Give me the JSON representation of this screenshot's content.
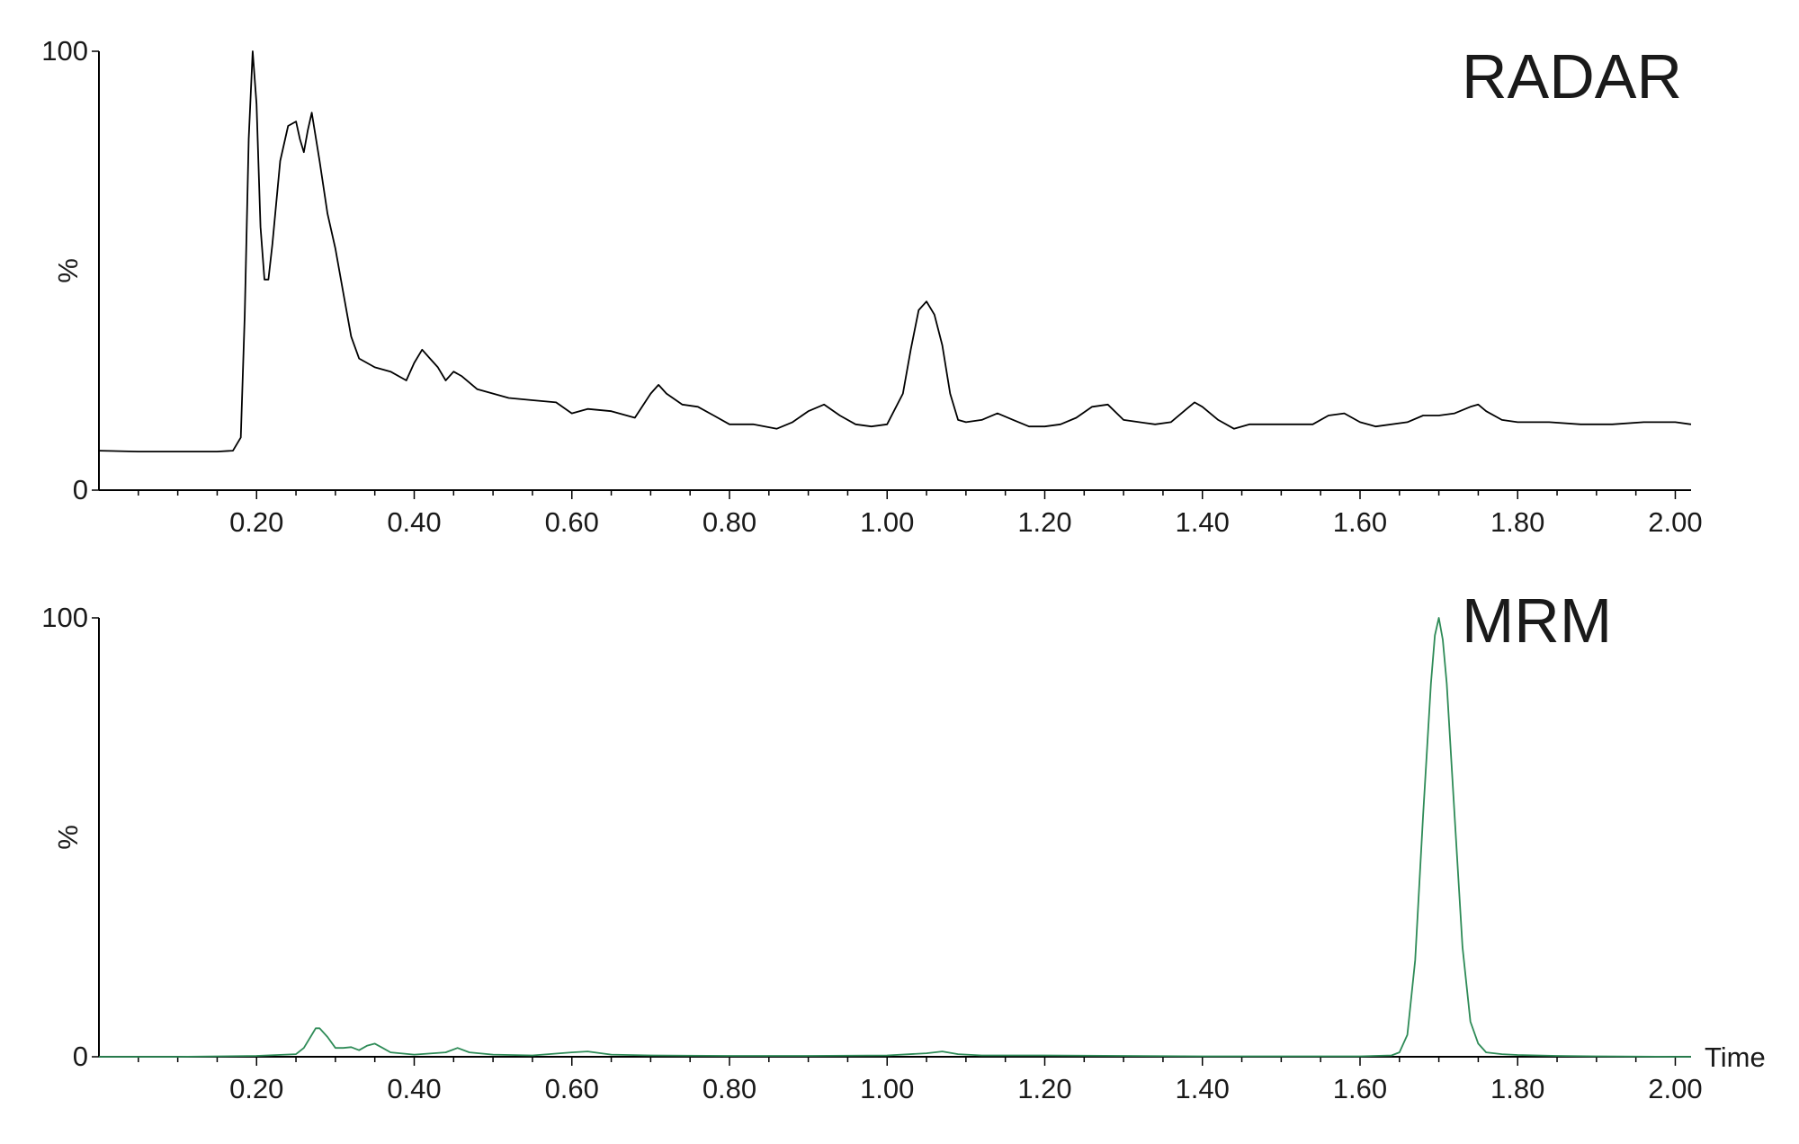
{
  "chart_data": [
    {
      "type": "line",
      "title": "RADAR",
      "ylabel": "%",
      "xlabel": "",
      "xlim": [
        0.0,
        2.02
      ],
      "ylim": [
        0,
        100
      ],
      "yticks": [
        0,
        100
      ],
      "xticks": [
        "0.20",
        "0.40",
        "0.60",
        "0.80",
        "1.00",
        "1.20",
        "1.40",
        "1.60",
        "1.80",
        "2.00"
      ],
      "grid": false,
      "line_color": "#000000",
      "series": [
        {
          "x": [
            0.0,
            0.05,
            0.1,
            0.15,
            0.17,
            0.18,
            0.185,
            0.19,
            0.195,
            0.2,
            0.205,
            0.21,
            0.215,
            0.22,
            0.23,
            0.24,
            0.25,
            0.255,
            0.26,
            0.265,
            0.27,
            0.28,
            0.29,
            0.3,
            0.31,
            0.32,
            0.33,
            0.35,
            0.37,
            0.39,
            0.4,
            0.41,
            0.42,
            0.43,
            0.44,
            0.45,
            0.46,
            0.48,
            0.5,
            0.52,
            0.55,
            0.58,
            0.6,
            0.62,
            0.65,
            0.68,
            0.7,
            0.71,
            0.72,
            0.74,
            0.76,
            0.78,
            0.8,
            0.83,
            0.86,
            0.88,
            0.9,
            0.92,
            0.94,
            0.96,
            0.98,
            1.0,
            1.02,
            1.03,
            1.04,
            1.05,
            1.06,
            1.07,
            1.08,
            1.09,
            1.1,
            1.12,
            1.14,
            1.16,
            1.18,
            1.2,
            1.22,
            1.24,
            1.26,
            1.28,
            1.3,
            1.32,
            1.34,
            1.36,
            1.38,
            1.39,
            1.4,
            1.42,
            1.44,
            1.46,
            1.5,
            1.54,
            1.56,
            1.58,
            1.6,
            1.62,
            1.66,
            1.68,
            1.7,
            1.72,
            1.74,
            1.75,
            1.76,
            1.78,
            1.8,
            1.84,
            1.88,
            1.92,
            1.96,
            2.0,
            2.02
          ],
          "y": [
            9,
            8.8,
            8.8,
            8.8,
            9,
            12,
            40,
            80,
            100,
            88,
            60,
            48,
            48,
            56,
            75,
            83,
            84,
            80,
            77,
            82,
            86,
            75,
            63,
            55,
            45,
            35,
            30,
            28,
            27,
            25,
            29,
            32,
            30,
            28,
            25,
            27,
            26,
            23,
            22,
            21,
            20.5,
            20,
            17.5,
            18.5,
            18,
            16.5,
            22,
            24,
            22,
            19.5,
            19,
            17,
            15,
            15,
            14,
            15.5,
            18,
            19.5,
            17,
            15,
            14.5,
            15,
            22,
            32,
            41,
            43,
            40,
            33,
            22,
            16,
            15.5,
            16,
            17.5,
            16,
            14.5,
            14.5,
            15,
            16.5,
            19,
            19.5,
            16,
            15.5,
            15,
            15.5,
            18.5,
            20,
            19,
            16,
            14,
            15,
            15,
            15,
            17,
            17.5,
            15.5,
            14.5,
            15.5,
            17,
            17,
            17.5,
            19,
            19.5,
            18,
            16,
            15.5,
            15.5,
            15,
            15,
            15.5,
            15.5,
            15
          ]
        }
      ]
    },
    {
      "type": "line",
      "title": "MRM",
      "ylabel": "%",
      "xlabel": "Time",
      "xlim": [
        0.0,
        2.02
      ],
      "ylim": [
        0,
        100
      ],
      "yticks": [
        0,
        100
      ],
      "xticks": [
        "0.20",
        "0.40",
        "0.60",
        "0.80",
        "1.00",
        "1.20",
        "1.40",
        "1.60",
        "1.80",
        "2.00"
      ],
      "grid": false,
      "line_color": "#2e8b57",
      "series": [
        {
          "x": [
            0.0,
            0.1,
            0.2,
            0.25,
            0.26,
            0.27,
            0.275,
            0.28,
            0.29,
            0.3,
            0.31,
            0.32,
            0.33,
            0.34,
            0.35,
            0.36,
            0.37,
            0.4,
            0.44,
            0.455,
            0.47,
            0.5,
            0.55,
            0.6,
            0.62,
            0.65,
            0.7,
            0.8,
            0.9,
            1.0,
            1.05,
            1.07,
            1.09,
            1.12,
            1.2,
            1.3,
            1.4,
            1.5,
            1.6,
            1.64,
            1.65,
            1.66,
            1.67,
            1.68,
            1.69,
            1.695,
            1.7,
            1.705,
            1.71,
            1.72,
            1.73,
            1.74,
            1.75,
            1.76,
            1.78,
            1.8,
            1.85,
            1.9,
            2.0,
            2.02
          ],
          "y": [
            0,
            0,
            0.2,
            0.6,
            2,
            5,
            6.5,
            6.5,
            4.5,
            2,
            2,
            2.2,
            1.5,
            2.5,
            3,
            2,
            1,
            0.5,
            1,
            2,
            1,
            0.5,
            0.3,
            1,
            1.2,
            0.5,
            0.3,
            0.2,
            0.2,
            0.3,
            0.8,
            1.2,
            0.6,
            0.3,
            0.3,
            0.2,
            0.1,
            0.1,
            0.1,
            0.3,
            1,
            5,
            22,
            55,
            85,
            96,
            100,
            95,
            85,
            55,
            25,
            8,
            3,
            1,
            0.6,
            0.4,
            0.2,
            0.1,
            0,
            0
          ]
        }
      ]
    }
  ]
}
